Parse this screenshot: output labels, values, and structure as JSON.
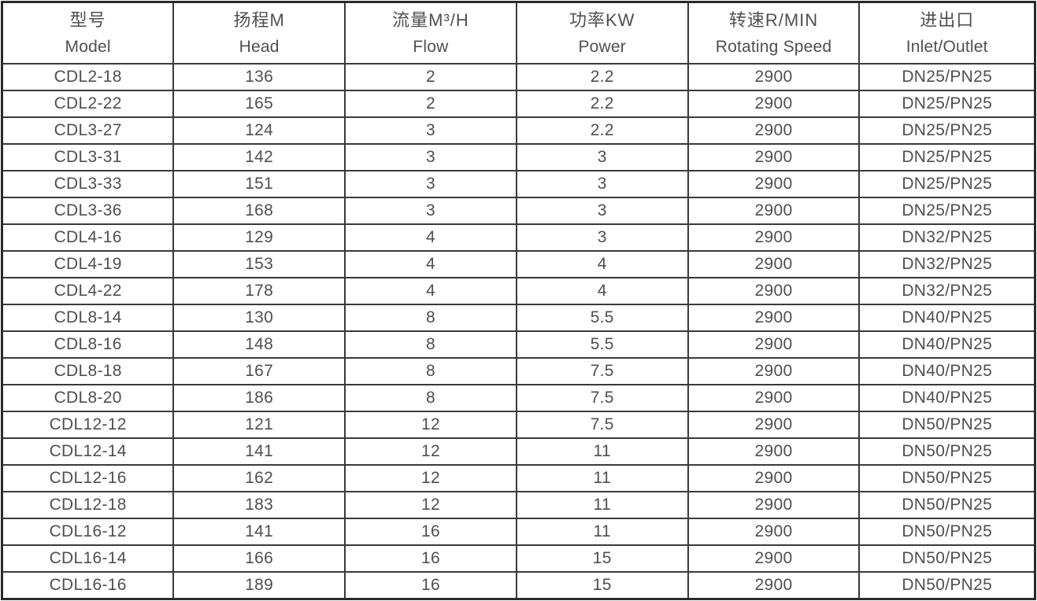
{
  "table": {
    "columns": [
      {
        "zh": "型号",
        "en": "Model"
      },
      {
        "zh": "扬程M",
        "en": "Head"
      },
      {
        "zh": "流量M³/H",
        "en": "Flow"
      },
      {
        "zh": "功率KW",
        "en": "Power"
      },
      {
        "zh": "转速R/MIN",
        "en": "Rotating Speed"
      },
      {
        "zh": "进出口",
        "en": "Inlet/Outlet"
      }
    ],
    "rows": [
      [
        "CDL2-18",
        "136",
        "2",
        "2.2",
        "2900",
        "DN25/PN25"
      ],
      [
        "CDL2-22",
        "165",
        "2",
        "2.2",
        "2900",
        "DN25/PN25"
      ],
      [
        "CDL3-27",
        "124",
        "3",
        "2.2",
        "2900",
        "DN25/PN25"
      ],
      [
        "CDL3-31",
        "142",
        "3",
        "3",
        "2900",
        "DN25/PN25"
      ],
      [
        "CDL3-33",
        "151",
        "3",
        "3",
        "2900",
        "DN25/PN25"
      ],
      [
        "CDL3-36",
        "168",
        "3",
        "3",
        "2900",
        "DN25/PN25"
      ],
      [
        "CDL4-16",
        "129",
        "4",
        "3",
        "2900",
        "DN32/PN25"
      ],
      [
        "CDL4-19",
        "153",
        "4",
        "4",
        "2900",
        "DN32/PN25"
      ],
      [
        "CDL4-22",
        "178",
        "4",
        "4",
        "2900",
        "DN32/PN25"
      ],
      [
        "CDL8-14",
        "130",
        "8",
        "5.5",
        "2900",
        "DN40/PN25"
      ],
      [
        "CDL8-16",
        "148",
        "8",
        "5.5",
        "2900",
        "DN40/PN25"
      ],
      [
        "CDL8-18",
        "167",
        "8",
        "7.5",
        "2900",
        "DN40/PN25"
      ],
      [
        "CDL8-20",
        "186",
        "8",
        "7.5",
        "2900",
        "DN40/PN25"
      ],
      [
        "CDL12-12",
        "121",
        "12",
        "7.5",
        "2900",
        "DN50/PN25"
      ],
      [
        "CDL12-14",
        "141",
        "12",
        "11",
        "2900",
        "DN50/PN25"
      ],
      [
        "CDL12-16",
        "162",
        "12",
        "11",
        "2900",
        "DN50/PN25"
      ],
      [
        "CDL12-18",
        "183",
        "12",
        "11",
        "2900",
        "DN50/PN25"
      ],
      [
        "CDL16-12",
        "141",
        "16",
        "11",
        "2900",
        "DN50/PN25"
      ],
      [
        "CDL16-14",
        "166",
        "16",
        "15",
        "2900",
        "DN50/PN25"
      ],
      [
        "CDL16-16",
        "189",
        "16",
        "15",
        "2900",
        "DN50/PN25"
      ]
    ]
  },
  "colors": {
    "background": "#ffffff",
    "border_outer": "#2a2a2a",
    "border_inner": "#3a3a3a",
    "text": "#4f4f4f"
  }
}
